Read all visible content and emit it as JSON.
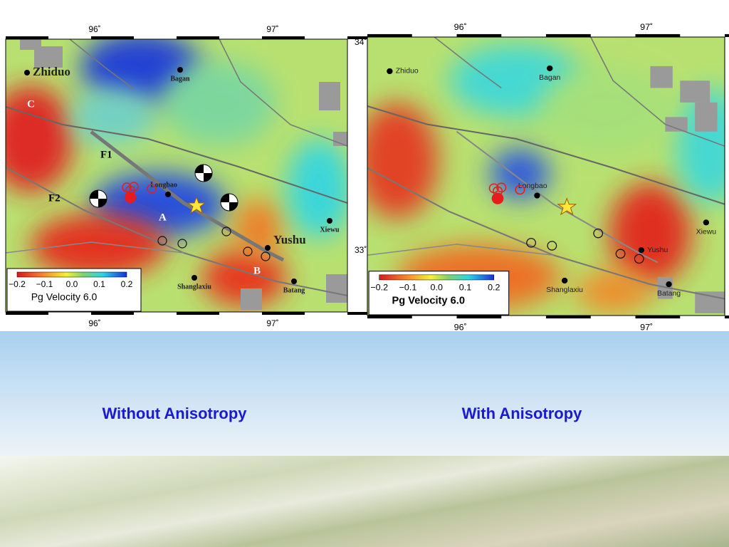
{
  "maps": [
    {
      "lon_labels_top": [
        "96˚",
        "97˚"
      ],
      "lon_labels_bottom": [
        "96˚",
        "97˚"
      ],
      "lat_labels": [
        "34˚",
        "33˚"
      ],
      "places": [
        "Zhiduo",
        "Bagan",
        "Longbao",
        "Xiewu",
        "Yushu",
        "Shanglaxiu",
        "Batang"
      ],
      "faults": [
        "F1",
        "F2"
      ],
      "regions": [
        "A",
        "B",
        "C"
      ],
      "colorbar": {
        "ticks": [
          "−0.2",
          "−0.1",
          "0.0",
          "0.1",
          "0.2"
        ],
        "label": "Pg Velocity 6.0"
      },
      "caption": "Without Anisotropy"
    },
    {
      "lon_labels_top": [
        "96˚",
        "97˚"
      ],
      "lon_labels_bottom": [
        "96˚",
        "97˚"
      ],
      "places": [
        "Zhiduo",
        "Bagan",
        "Longbao",
        "Xiewu",
        "Yushu",
        "Shanglaxiu",
        "Batang"
      ],
      "colorbar": {
        "ticks": [
          "−0.2",
          "−0.1",
          "0.0",
          "0.1",
          "0.2"
        ],
        "label": "Pg Velocity 6.0"
      },
      "caption": "With Anisotropy"
    }
  ]
}
